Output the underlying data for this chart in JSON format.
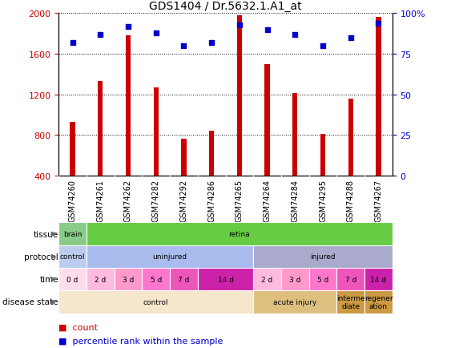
{
  "title": "GDS1404 / Dr.5632.1.A1_at",
  "samples": [
    "GSM74260",
    "GSM74261",
    "GSM74262",
    "GSM74282",
    "GSM74292",
    "GSM74286",
    "GSM74265",
    "GSM74264",
    "GSM74284",
    "GSM74295",
    "GSM74288",
    "GSM74267"
  ],
  "counts": [
    930,
    1330,
    1780,
    1270,
    760,
    840,
    1980,
    1500,
    1210,
    810,
    1160,
    1960
  ],
  "percentiles": [
    82,
    87,
    92,
    88,
    80,
    82,
    93,
    90,
    87,
    80,
    85,
    94
  ],
  "ylim_left": [
    400,
    2000
  ],
  "ylim_right": [
    0,
    100
  ],
  "yticks_left": [
    400,
    800,
    1200,
    1600,
    2000
  ],
  "yticks_right": [
    0,
    25,
    50,
    75,
    100
  ],
  "bar_color": "#cc0000",
  "scatter_color": "#0000cc",
  "tick_label_color_left": "#cc0000",
  "tick_label_color_right": "#0000cc",
  "tissue_segments": [
    {
      "text": "brain",
      "start": 0,
      "end": 1,
      "color": "#88cc88"
    },
    {
      "text": "retina",
      "start": 1,
      "end": 12,
      "color": "#66cc44"
    }
  ],
  "protocol_segments": [
    {
      "text": "control",
      "start": 0,
      "end": 1,
      "color": "#bbccee"
    },
    {
      "text": "uninjured",
      "start": 1,
      "end": 7,
      "color": "#aabbee"
    },
    {
      "text": "injured",
      "start": 7,
      "end": 12,
      "color": "#aaaacc"
    }
  ],
  "time_segments": [
    {
      "text": "0 d",
      "start": 0,
      "end": 1,
      "color": "#ffddee"
    },
    {
      "text": "2 d",
      "start": 1,
      "end": 2,
      "color": "#ffbbdd"
    },
    {
      "text": "3 d",
      "start": 2,
      "end": 3,
      "color": "#ff99cc"
    },
    {
      "text": "5 d",
      "start": 3,
      "end": 4,
      "color": "#ff77cc"
    },
    {
      "text": "7 d",
      "start": 4,
      "end": 5,
      "color": "#ee55bb"
    },
    {
      "text": "14 d",
      "start": 5,
      "end": 7,
      "color": "#cc22aa"
    },
    {
      "text": "2 d",
      "start": 7,
      "end": 8,
      "color": "#ffbbdd"
    },
    {
      "text": "3 d",
      "start": 8,
      "end": 9,
      "color": "#ff99cc"
    },
    {
      "text": "5 d",
      "start": 9,
      "end": 10,
      "color": "#ff77cc"
    },
    {
      "text": "7 d",
      "start": 10,
      "end": 11,
      "color": "#ee55bb"
    },
    {
      "text": "14 d",
      "start": 11,
      "end": 12,
      "color": "#cc22aa"
    }
  ],
  "disease_segments": [
    {
      "text": "control",
      "start": 0,
      "end": 7,
      "color": "#f5e6cc"
    },
    {
      "text": "acute injury",
      "start": 7,
      "end": 10,
      "color": "#ddc080"
    },
    {
      "text": "interme\ndiate",
      "start": 10,
      "end": 11,
      "color": "#cc9944"
    },
    {
      "text": "regener\nation",
      "start": 11,
      "end": 12,
      "color": "#cc9944"
    }
  ],
  "row_labels": [
    "tissue",
    "protocol",
    "time",
    "disease state"
  ],
  "xtick_bg_color": "#cccccc"
}
